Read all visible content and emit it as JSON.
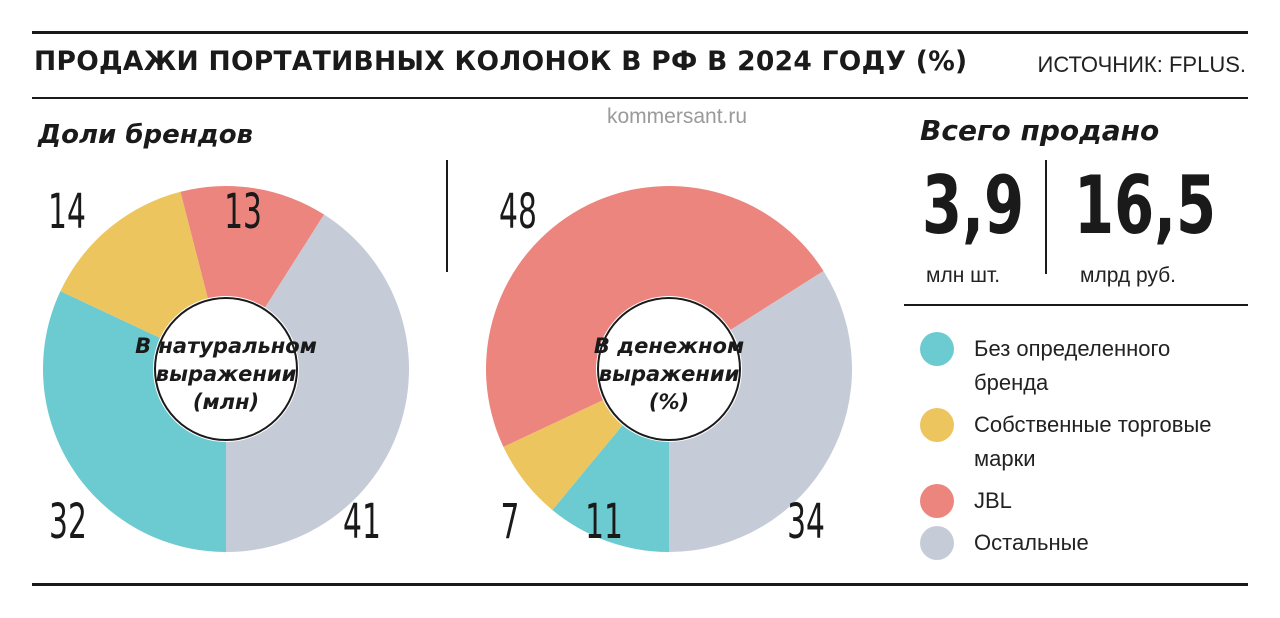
{
  "header": {
    "title": "ПРОДАЖИ ПОРТАТИВНЫХ КОЛОНОК В РФ В 2024 ГОДУ (%)",
    "source": "ИСТОЧНИК: FPLUS."
  },
  "watermark": "kommersant.ru",
  "shares_heading": "Доли брендов",
  "total": {
    "heading": "Всего продано",
    "units_value": "3,9",
    "units_label": "млн шт.",
    "money_value": "16,5",
    "money_label": "млрд руб."
  },
  "legend": [
    {
      "label": "Без определенного бренда",
      "color": "#6ccbd0"
    },
    {
      "label": "Собственные торговые марки",
      "color": "#ecc55f"
    },
    {
      "label": "JBL",
      "color": "#ec857e"
    },
    {
      "label": "Остальные",
      "color": "#c6cbd8"
    }
  ],
  "chart_data": [
    {
      "type": "pie",
      "title": "В натуральном выражении (млн)",
      "center_lines": [
        "В натуральном",
        "выражении",
        "(млн)"
      ],
      "categories": [
        "Без определенного бренда",
        "Собственные торговые марки",
        "JBL",
        "Остальные"
      ],
      "values": [
        32,
        14,
        13,
        41
      ],
      "labels": [
        "32",
        "14",
        "13",
        "41"
      ],
      "colors": [
        "#6ccbd0",
        "#ecc55f",
        "#ec857e",
        "#c6cbd8"
      ],
      "donut": true
    },
    {
      "type": "pie",
      "title": "В денежном выражении (%)",
      "center_lines": [
        "В денежном",
        "выражении",
        "(%)"
      ],
      "categories": [
        "Без определенного бренда",
        "Собственные торговые марки",
        "JBL",
        "Остальные"
      ],
      "values": [
        11,
        7,
        48,
        34
      ],
      "labels": [
        "11",
        "7",
        "48",
        "34"
      ],
      "colors": [
        "#6ccbd0",
        "#ecc55f",
        "#ec857e",
        "#c6cbd8"
      ],
      "donut": true
    }
  ]
}
